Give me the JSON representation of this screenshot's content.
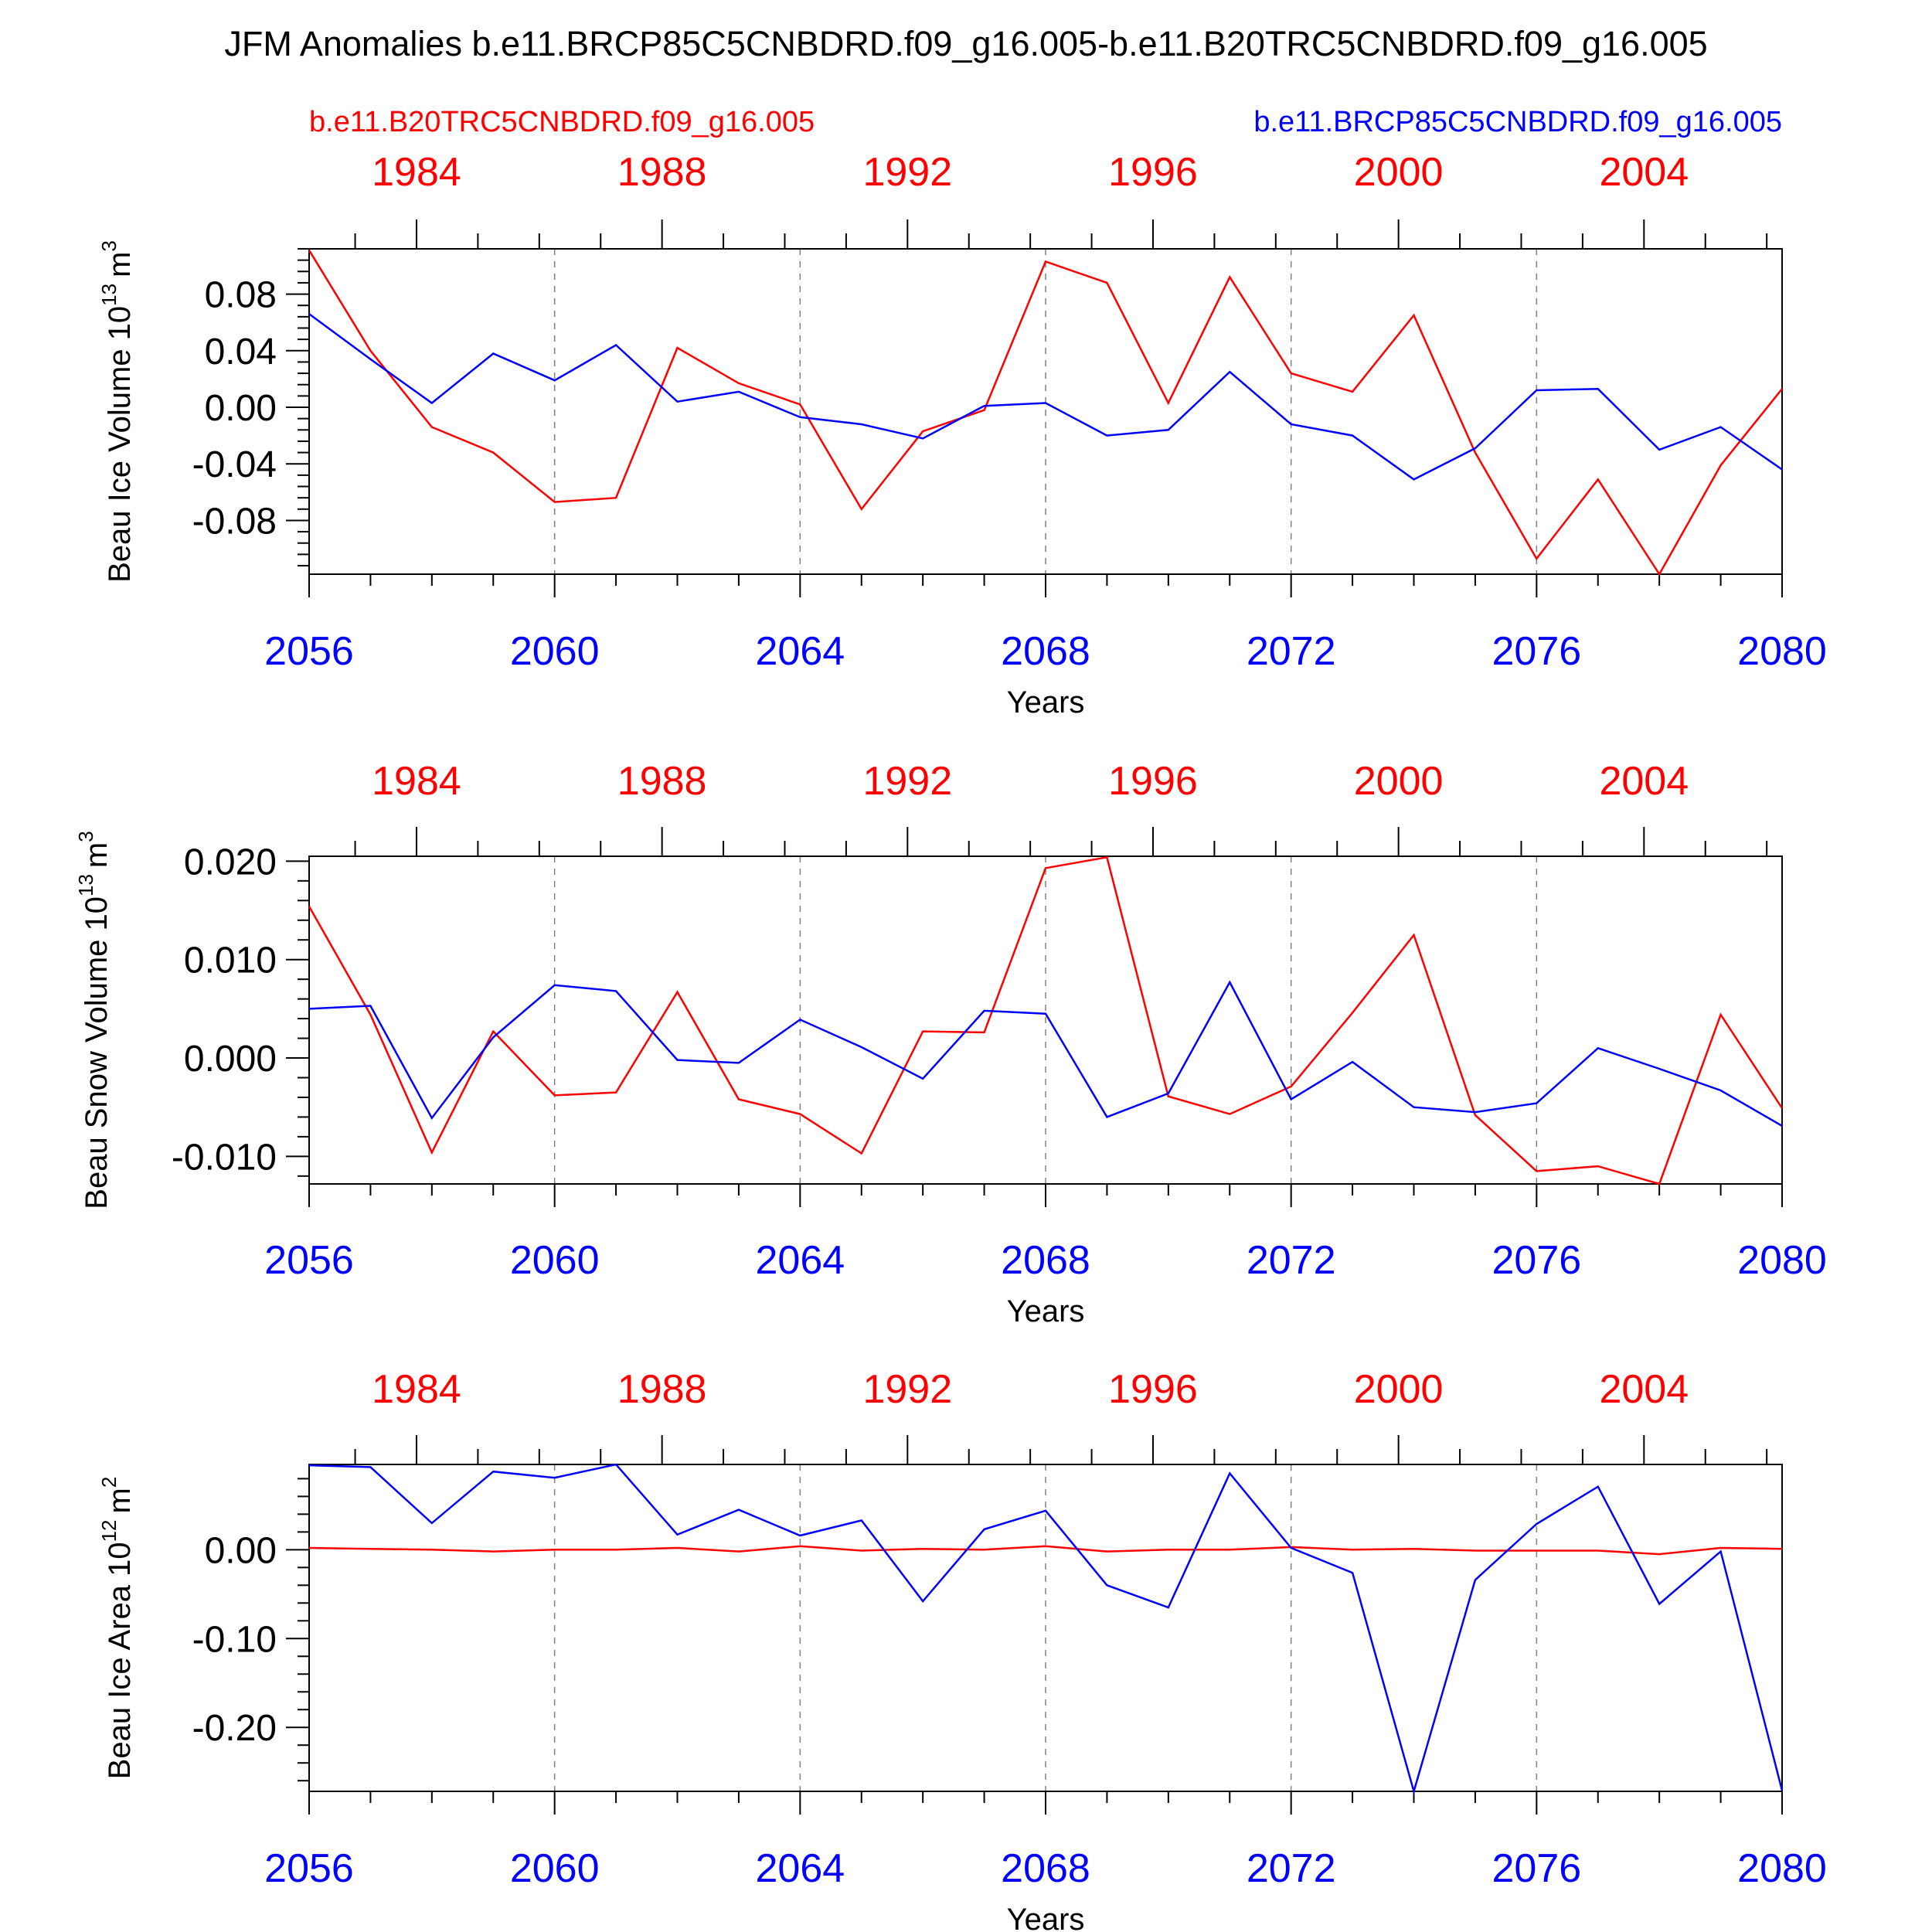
{
  "title": "JFM Anomalies b.e11.BRCP85C5CNBDRD.f09_g16.005-b.e11.B20TRC5CNBDRD.f09_g16.005",
  "legend": {
    "left": "b.e11.B20TRC5CNBDRD.f09_g16.005",
    "right": "b.e11.BRCP85C5CNBDRD.f09_g16.005"
  },
  "colors": {
    "historical": "#ff0000",
    "future": "#0000ff",
    "axis": "#000000",
    "grid": "#808080"
  },
  "chart_data": [
    {
      "type": "line",
      "ylabel": "Beau Ice Volume 10",
      "ylabel_exp": "13",
      "ylabel_unit": "m",
      "ylabel_unit_exp": "3",
      "xlabel": "Years",
      "xlim": [
        2056,
        2080
      ],
      "ylim": [
        -0.118,
        0.112
      ],
      "yticks": [
        -0.08,
        -0.04,
        0.0,
        0.04,
        0.08
      ],
      "ytick_labels": [
        "-0.08",
        "-0.04",
        "0.00",
        "0.04",
        "0.08"
      ],
      "x_ticks": [
        2056,
        2060,
        2064,
        2068,
        2072,
        2076,
        2080
      ],
      "x_tick_labels": [
        "2056",
        "2060",
        "2064",
        "2068",
        "2072",
        "2076",
        "2080"
      ],
      "top_tick_labels": [
        "1984",
        "1988",
        "1992",
        "1996",
        "2000",
        "2004"
      ],
      "x": [
        2056,
        2057,
        2058,
        2059,
        2060,
        2061,
        2062,
        2063,
        2064,
        2065,
        2066,
        2067,
        2068,
        2069,
        2070,
        2071,
        2072,
        2073,
        2074,
        2075,
        2076,
        2077,
        2078,
        2079,
        2080
      ],
      "series": [
        {
          "name": "b.e11.B20TRC5CNBDRD.f09_g16.005",
          "color": "#ff0000",
          "values": [
            0.111,
            0.04,
            -0.014,
            -0.032,
            -0.067,
            -0.064,
            0.042,
            0.017,
            0.002,
            -0.072,
            -0.017,
            -0.002,
            0.103,
            0.088,
            0.003,
            0.092,
            0.024,
            0.011,
            0.065,
            -0.032,
            -0.107,
            -0.051,
            -0.118,
            -0.041,
            0.013
          ]
        },
        {
          "name": "b.e11.BRCP85C5CNBDRD.f09_g16.005",
          "color": "#0000ff",
          "values": [
            0.066,
            0.034,
            0.003,
            0.038,
            0.019,
            0.044,
            0.004,
            0.011,
            -0.007,
            -0.012,
            -0.022,
            0.001,
            0.003,
            -0.02,
            -0.016,
            0.025,
            -0.012,
            -0.02,
            -0.051,
            -0.029,
            0.012,
            0.013,
            -0.03,
            -0.014,
            -0.044
          ]
        }
      ]
    },
    {
      "type": "line",
      "ylabel": "Beau Snow Volume 10",
      "ylabel_exp": "13",
      "ylabel_unit": "m",
      "ylabel_unit_exp": "3",
      "xlabel": "Years",
      "xlim": [
        2056,
        2080
      ],
      "ylim": [
        -0.0128,
        0.0205
      ],
      "yticks": [
        -0.01,
        0.0,
        0.01,
        0.02
      ],
      "ytick_labels": [
        "-0.010",
        "0.000",
        "0.010",
        "0.020"
      ],
      "x_ticks": [
        2056,
        2060,
        2064,
        2068,
        2072,
        2076,
        2080
      ],
      "x_tick_labels": [
        "2056",
        "2060",
        "2064",
        "2068",
        "2072",
        "2076",
        "2080"
      ],
      "top_tick_labels": [
        "1984",
        "1988",
        "1992",
        "1996",
        "2000",
        "2004"
      ],
      "x": [
        2056,
        2057,
        2058,
        2059,
        2060,
        2061,
        2062,
        2063,
        2064,
        2065,
        2066,
        2067,
        2068,
        2069,
        2070,
        2071,
        2072,
        2073,
        2074,
        2075,
        2076,
        2077,
        2078,
        2079,
        2080
      ],
      "series": [
        {
          "name": "b.e11.B20TRC5CNBDRD.f09_g16.005",
          "color": "#ff0000",
          "values": [
            0.0154,
            0.0044,
            -0.0096,
            0.0027,
            -0.0038,
            -0.0035,
            0.0067,
            -0.0042,
            -0.0057,
            -0.0097,
            0.0027,
            0.0026,
            0.0193,
            0.0204,
            -0.0039,
            -0.0057,
            -0.0029,
            0.0046,
            0.0125,
            -0.0058,
            -0.0115,
            -0.011,
            -0.0128,
            0.0044,
            -0.0051
          ]
        },
        {
          "name": "b.e11.BRCP85C5CNBDRD.f09_g16.005",
          "color": "#0000ff",
          "values": [
            0.005,
            0.0053,
            -0.0061,
            0.0021,
            0.0074,
            0.0068,
            -0.0002,
            -0.0005,
            0.0039,
            0.0011,
            -0.0021,
            0.0048,
            0.0045,
            -0.006,
            -0.0036,
            0.0077,
            -0.0042,
            -0.0004,
            -0.005,
            -0.0055,
            -0.0046,
            0.001,
            -0.0011,
            -0.0033,
            -0.0069
          ]
        }
      ]
    },
    {
      "type": "line",
      "ylabel": "Beau Ice Area 10",
      "ylabel_exp": "12",
      "ylabel_unit": "m",
      "ylabel_unit_exp": "2",
      "xlabel": "Years",
      "xlim": [
        2056,
        2080
      ],
      "ylim": [
        -0.272,
        0.096
      ],
      "yticks": [
        -0.2,
        -0.1,
        0.0
      ],
      "ytick_labels": [
        "-0.20",
        "-0.10",
        "0.00"
      ],
      "x_ticks": [
        2056,
        2060,
        2064,
        2068,
        2072,
        2076,
        2080
      ],
      "x_tick_labels": [
        "2056",
        "2060",
        "2064",
        "2068",
        "2072",
        "2076",
        "2080"
      ],
      "top_tick_labels": [
        "1984",
        "1988",
        "1992",
        "1996",
        "2000",
        "2004"
      ],
      "x": [
        2056,
        2057,
        2058,
        2059,
        2060,
        2061,
        2062,
        2063,
        2064,
        2065,
        2066,
        2067,
        2068,
        2069,
        2070,
        2071,
        2072,
        2073,
        2074,
        2075,
        2076,
        2077,
        2078,
        2079,
        2080
      ],
      "series": [
        {
          "name": "b.e11.B20TRC5CNBDRD.f09_g16.005",
          "color": "#ff0000",
          "values": [
            0.002,
            0.001,
            0.0,
            -0.002,
            0.0,
            0.0,
            0.002,
            -0.002,
            0.004,
            -0.001,
            0.001,
            0.0,
            0.004,
            -0.002,
            0.0,
            0.0,
            0.003,
            0.0,
            0.001,
            -0.001,
            -0.001,
            -0.001,
            -0.005,
            0.002,
            0.001
          ]
        },
        {
          "name": "b.e11.BRCP85C5CNBDRD.f09_g16.005",
          "color": "#0000ff",
          "values": [
            0.095,
            0.093,
            0.03,
            0.088,
            0.081,
            0.096,
            0.017,
            0.045,
            0.016,
            0.033,
            -0.058,
            0.023,
            0.044,
            -0.04,
            -0.065,
            0.086,
            0.002,
            -0.026,
            -0.272,
            -0.034,
            0.029,
            0.071,
            -0.061,
            -0.002,
            -0.271
          ]
        }
      ]
    }
  ]
}
